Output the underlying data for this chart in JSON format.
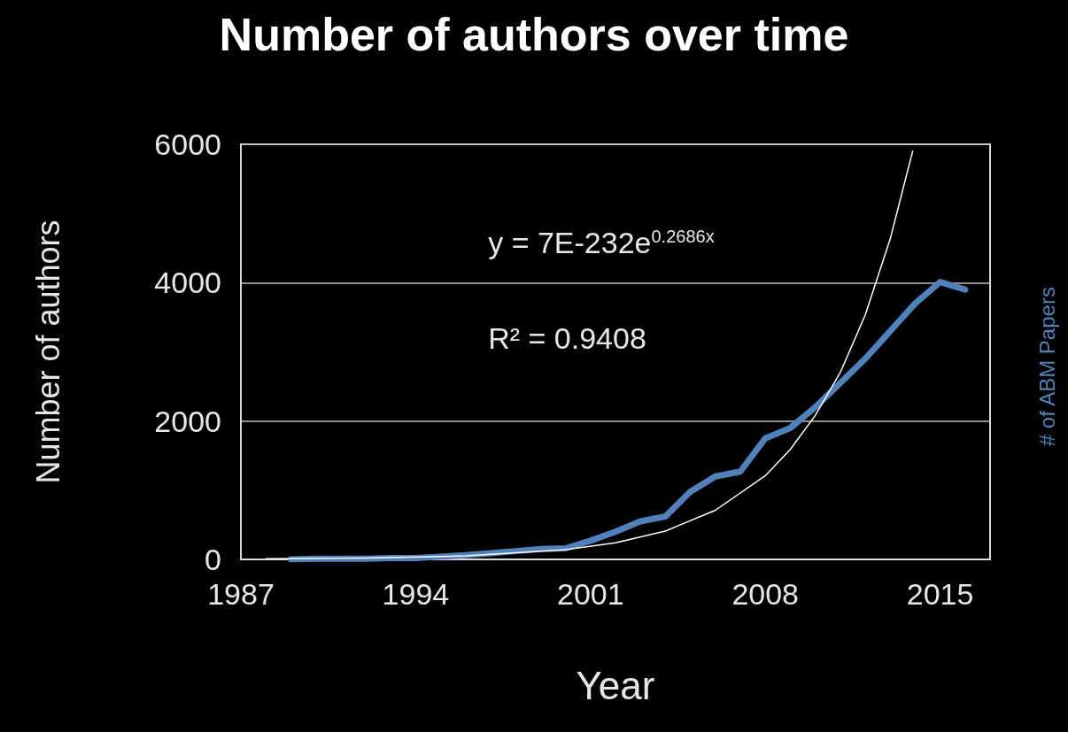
{
  "chart_data": {
    "type": "line",
    "title": "Number of authors over time",
    "xlabel": "Year",
    "ylabel": "Number of authors",
    "y2label": "# of ABM Papers",
    "annotations": [
      "y = 7E-232e$^{0.2686x}$",
      "R² = 0.9408"
    ],
    "xlim": [
      1987,
      2017
    ],
    "xticks": [
      1987,
      1994,
      2001,
      2008,
      2015
    ],
    "ylim": [
      0,
      6000
    ],
    "yticks": [
      0,
      2000,
      4000,
      6000
    ],
    "grid": "y",
    "marker": "none",
    "line_style": "solid",
    "series": [
      {
        "color": "#4f81bd",
        "x": [
          1989,
          1990,
          1991,
          1992,
          1993,
          1994,
          1995,
          1996,
          1997,
          1998,
          1999,
          2000,
          2001,
          2002,
          2003,
          2004,
          2005,
          2006,
          2007,
          2008,
          2009,
          2010,
          2011,
          2012,
          2013,
          2014,
          2015,
          2016
        ],
        "values": [
          0,
          10,
          10,
          10,
          20,
          20,
          40,
          60,
          90,
          120,
          150,
          160,
          270,
          400,
          550,
          620,
          980,
          1200,
          1270,
          1750,
          1900,
          2200,
          2550,
          2900,
          3300,
          3700,
          4010,
          3900
        ]
      },
      {
        "color": "#ffffff",
        "x": [
          1988,
          1992,
          1996,
          2000,
          2002,
          2004,
          2006,
          2008,
          2009,
          2010,
          2011,
          2012,
          2013,
          2013.9
        ],
        "values": [
          10,
          20,
          50,
          140,
          240,
          410,
          710,
          1210,
          1590,
          2080,
          2700,
          3530,
          4630,
          5900
        ]
      }
    ]
  }
}
